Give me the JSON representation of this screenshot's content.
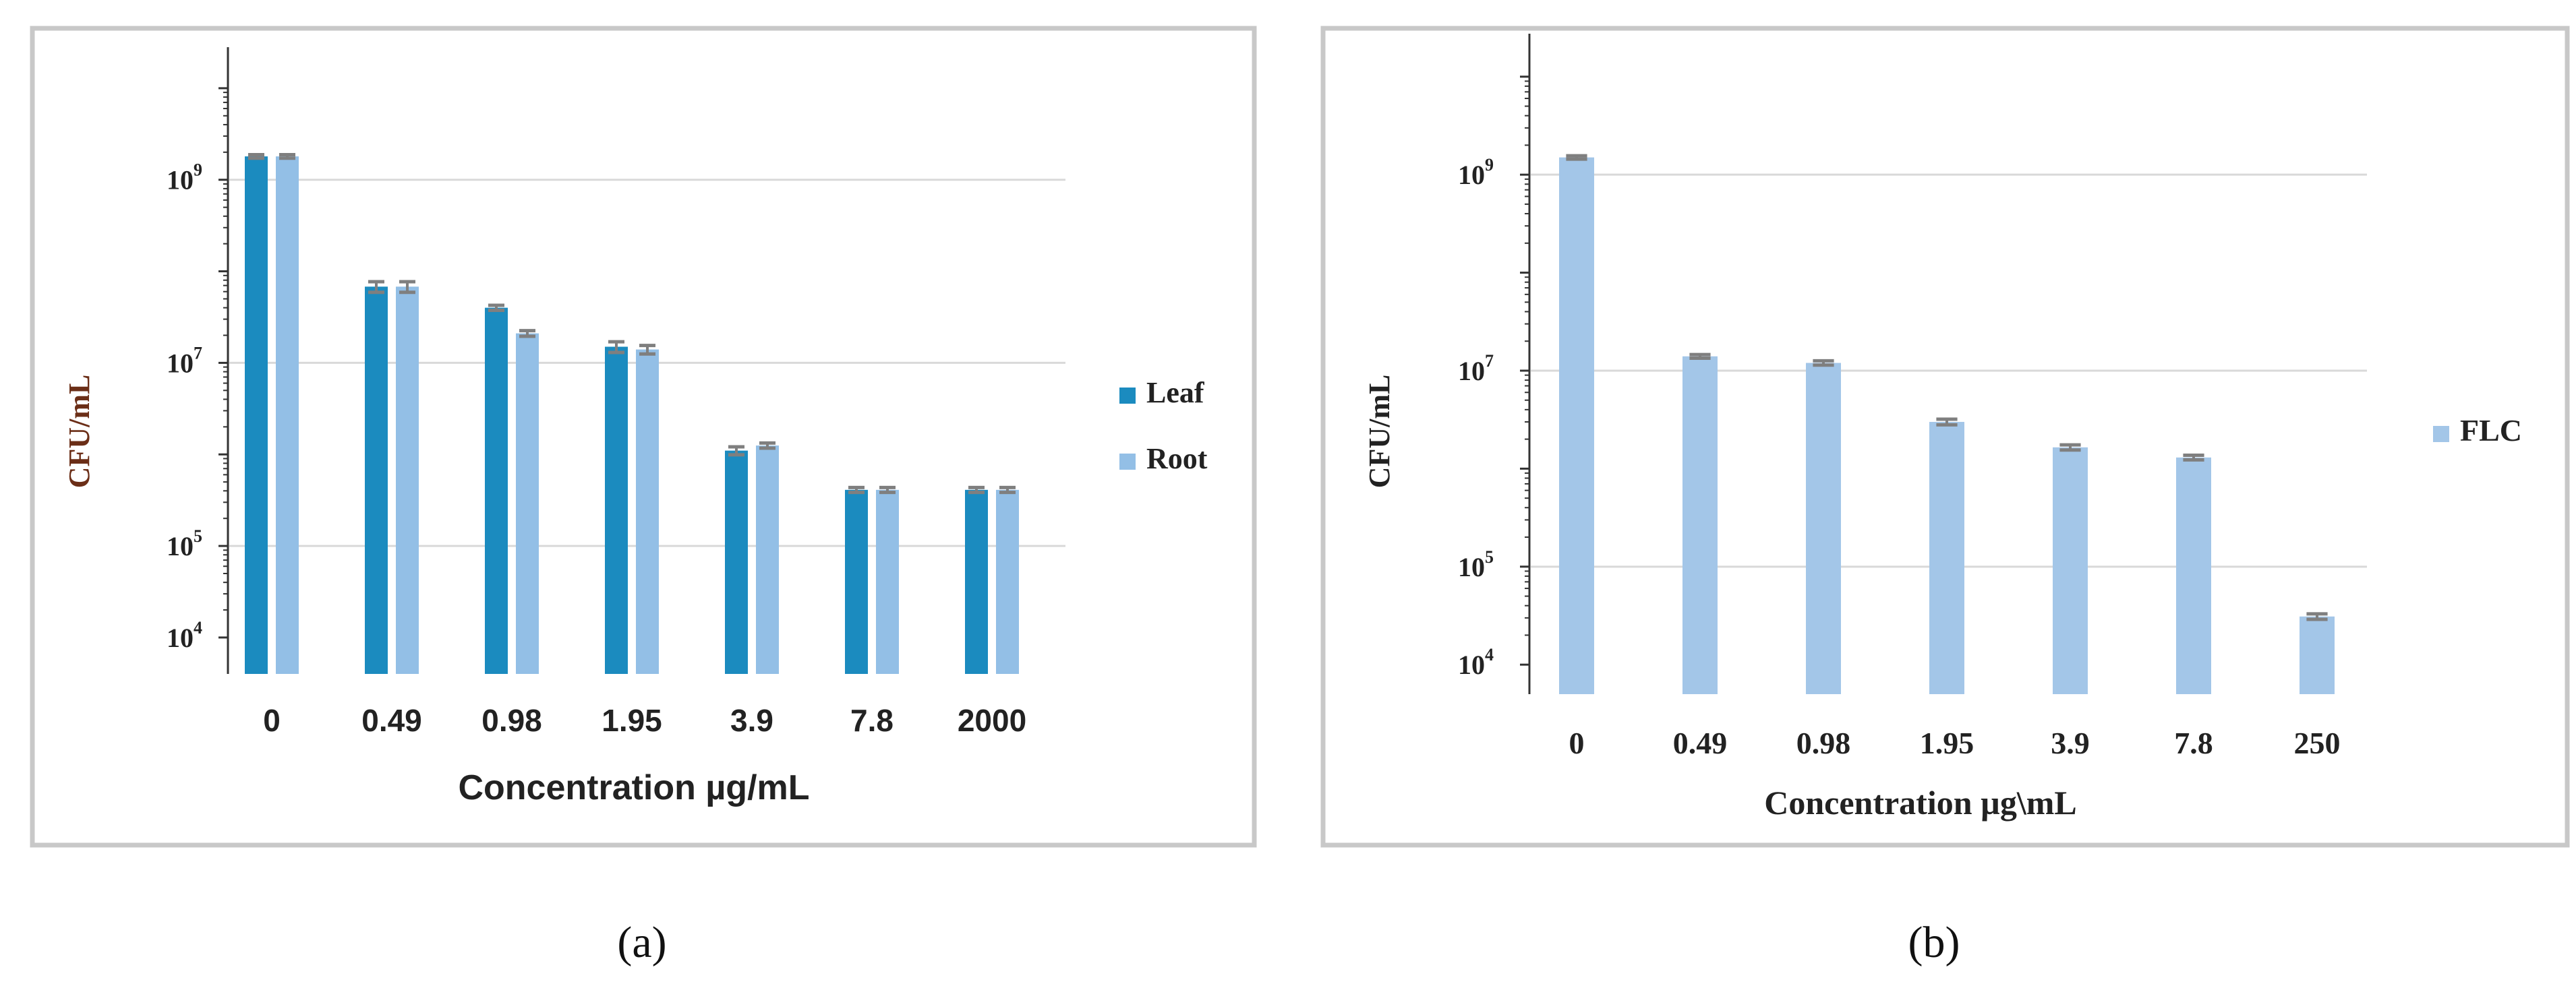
{
  "colors": {
    "leaf": "#1B8BBF",
    "root": "#93BFE6",
    "flc": "#A3C6E8",
    "grid": "#D9D9D9",
    "frame": "#C8C8C8",
    "axis": "#333333",
    "errorbar": "#7F7F7F",
    "ylabel_a": "#6B2E17",
    "text": "#222222"
  },
  "captions": {
    "a": "(a)",
    "b": "(b)"
  },
  "chart_data": [
    {
      "id": "a",
      "type": "bar",
      "scale": "log",
      "title": "",
      "xlabel": "Concentration µg/mL",
      "ylabel": "CFU/mL",
      "categories": [
        "0",
        "0.49",
        "0.98",
        "1.95",
        "3.9",
        "7.8",
        "2000"
      ],
      "ytick_values": [
        10000,
        100000,
        10000000,
        1000000000
      ],
      "ytick_labels": [
        {
          "base": "10",
          "exp": "4"
        },
        {
          "base": "10",
          "exp": "5"
        },
        {
          "base": "10",
          "exp": "7"
        },
        {
          "base": "10",
          "exp": "9"
        }
      ],
      "ylim": [
        4000,
        20000000000
      ],
      "grid": true,
      "legend_position": "right",
      "series": [
        {
          "name": "Leaf",
          "color_key": "leaf",
          "values": [
            1800000000,
            68000000,
            40000000,
            15000000,
            1100000,
            410000,
            410000
          ],
          "errors": [
            80000000,
            9000000,
            2500000,
            2000000,
            110000,
            25000,
            25000
          ]
        },
        {
          "name": "Root",
          "color_key": "root",
          "values": [
            1800000000,
            68000000,
            21000000,
            14000000,
            1250000,
            410000,
            410000
          ],
          "errors": [
            80000000,
            9000000,
            1500000,
            1500000,
            80000,
            25000,
            25000
          ]
        }
      ]
    },
    {
      "id": "b",
      "type": "bar",
      "scale": "log",
      "title": "",
      "xlabel": "Concentration µg\\mL",
      "ylabel": "CFU/mL",
      "categories": [
        "0",
        "0.49",
        "0.98",
        "1.95",
        "3.9",
        "7.8",
        "250"
      ],
      "ytick_values": [
        10000,
        100000,
        10000000,
        1000000000
      ],
      "ytick_labels": [
        {
          "base": "10",
          "exp": "4"
        },
        {
          "base": "10",
          "exp": "5"
        },
        {
          "base": "10",
          "exp": "7"
        },
        {
          "base": "10",
          "exp": "9"
        }
      ],
      "ylim": [
        5000,
        20000000000
      ],
      "grid": true,
      "legend_position": "right",
      "series": [
        {
          "name": "FLC",
          "color_key": "flc",
          "values": [
            1500000000,
            14000000,
            12000000,
            3000000,
            1650000,
            1300000,
            31000
          ],
          "errors": [
            60000000,
            600000,
            600000,
            200000,
            100000,
            70000,
            2000
          ]
        }
      ]
    }
  ]
}
